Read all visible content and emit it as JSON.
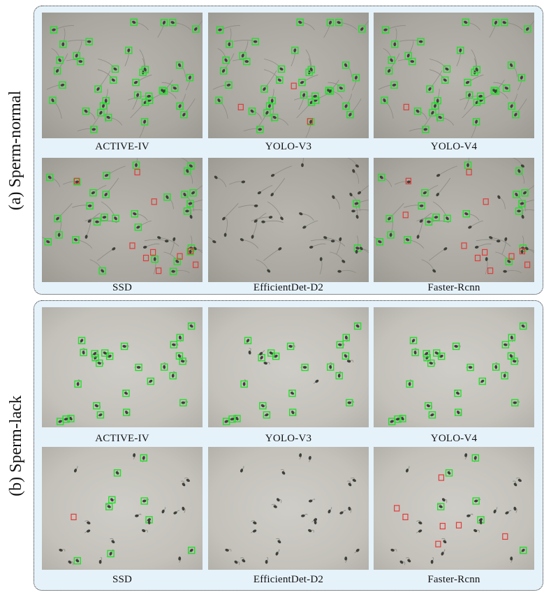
{
  "sections": [
    {
      "id": "a",
      "label": "(a)  Sperm-normal",
      "captions": [
        "ACTIVE-IV",
        "YOLO-V3",
        "YOLO-V4",
        "SSD",
        "EfficientDet-D2",
        "Faster-Rcnn"
      ]
    },
    {
      "id": "b",
      "label": "(b) Sperm-lack",
      "captions": [
        "ACTIVE-IV",
        "YOLO-V3",
        "YOLO-V4",
        "SSD",
        "EfficientDet-D2",
        "Faster-Rcnn"
      ]
    }
  ],
  "colors": {
    "panel_background": "#e6f2fa",
    "detection_box_correct": "#22e02a",
    "detection_box_error": "#e23a3a",
    "microscope_background": "#aaa8a0"
  }
}
